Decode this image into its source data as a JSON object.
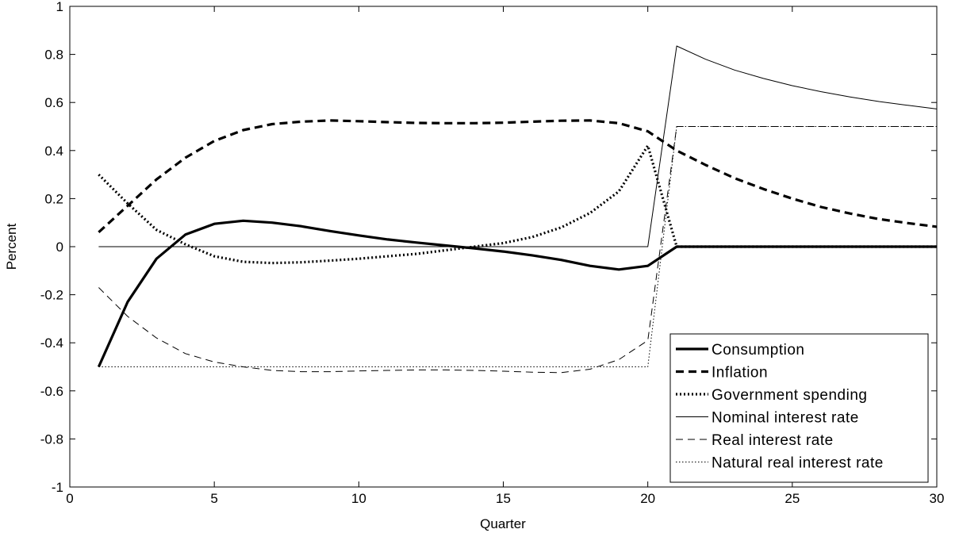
{
  "chart_data": {
    "type": "line",
    "title": "",
    "xlabel": "Quarter",
    "ylabel": "Percent",
    "xlim": [
      0,
      30
    ],
    "ylim": [
      -1,
      1
    ],
    "x_ticks": [
      0,
      5,
      10,
      15,
      20,
      25,
      30
    ],
    "y_ticks": [
      -1,
      -0.8,
      -0.6,
      -0.4,
      -0.2,
      0,
      0.2,
      0.4,
      0.6,
      0.8,
      1
    ],
    "x_tick_labels": [
      "0",
      "5",
      "10",
      "15",
      "20",
      "25",
      "30"
    ],
    "y_tick_labels": [
      "-1",
      "-0.8",
      "-0.6",
      "-0.4",
      "-0.2",
      "0",
      "0.2",
      "0.4",
      "0.6",
      "0.8",
      "1"
    ],
    "grid": false,
    "legend_position": "bottom-right",
    "x": [
      1,
      2,
      3,
      4,
      5,
      6,
      7,
      8,
      9,
      10,
      11,
      12,
      13,
      14,
      15,
      16,
      17,
      18,
      19,
      20,
      21,
      22,
      23,
      24,
      25,
      26,
      27,
      28,
      29,
      30
    ],
    "series": [
      {
        "name": "Consumption",
        "style": "thick-solid",
        "values": [
          -0.5,
          -0.23,
          -0.05,
          0.05,
          0.095,
          0.108,
          0.1,
          0.085,
          0.065,
          0.047,
          0.03,
          0.017,
          0.005,
          -0.007,
          -0.02,
          -0.036,
          -0.055,
          -0.08,
          -0.095,
          -0.08,
          0,
          0,
          0,
          0,
          0,
          0,
          0,
          0,
          0,
          0
        ]
      },
      {
        "name": "Inflation",
        "style": "thick-dashed",
        "values": [
          0.06,
          0.17,
          0.28,
          0.37,
          0.44,
          0.485,
          0.51,
          0.52,
          0.525,
          0.522,
          0.518,
          0.515,
          0.514,
          0.514,
          0.516,
          0.52,
          0.524,
          0.525,
          0.514,
          0.48,
          0.4,
          0.34,
          0.285,
          0.24,
          0.2,
          0.165,
          0.138,
          0.115,
          0.098,
          0.083
        ]
      },
      {
        "name": "Government spending",
        "style": "thick-dotted",
        "values": [
          0.3,
          0.18,
          0.07,
          0.01,
          -0.04,
          -0.063,
          -0.068,
          -0.065,
          -0.058,
          -0.05,
          -0.04,
          -0.03,
          -0.015,
          0,
          0.015,
          0.04,
          0.08,
          0.14,
          0.23,
          0.42,
          0,
          0,
          0,
          0,
          0,
          0,
          0,
          0,
          0,
          0
        ]
      },
      {
        "name": "Nominal interest rate",
        "style": "thin-solid",
        "values": [
          0,
          0,
          0,
          0,
          0,
          0,
          0,
          0,
          0,
          0,
          0,
          0,
          0,
          0,
          0,
          0,
          0,
          0,
          0,
          0,
          0.835,
          0.78,
          0.735,
          0.7,
          0.67,
          0.645,
          0.623,
          0.604,
          0.588,
          0.573
        ]
      },
      {
        "name": "Real interest rate",
        "style": "thin-dashed",
        "values": [
          -0.17,
          -0.29,
          -0.38,
          -0.445,
          -0.48,
          -0.5,
          -0.515,
          -0.52,
          -0.52,
          -0.517,
          -0.515,
          -0.513,
          -0.513,
          -0.515,
          -0.518,
          -0.522,
          -0.524,
          -0.51,
          -0.47,
          -0.39,
          0.5,
          0.5,
          0.5,
          0.5,
          0.5,
          0.5,
          0.5,
          0.5,
          0.5,
          0.5
        ]
      },
      {
        "name": "Natural real interest rate",
        "style": "thin-dotted",
        "values": [
          -0.5,
          -0.5,
          -0.5,
          -0.5,
          -0.5,
          -0.5,
          -0.5,
          -0.5,
          -0.5,
          -0.5,
          -0.5,
          -0.5,
          -0.5,
          -0.5,
          -0.5,
          -0.5,
          -0.5,
          -0.5,
          -0.5,
          -0.5,
          0.5,
          0.5,
          0.5,
          0.5,
          0.5,
          0.5,
          0.5,
          0.5,
          0.5,
          0.5
        ]
      }
    ]
  }
}
